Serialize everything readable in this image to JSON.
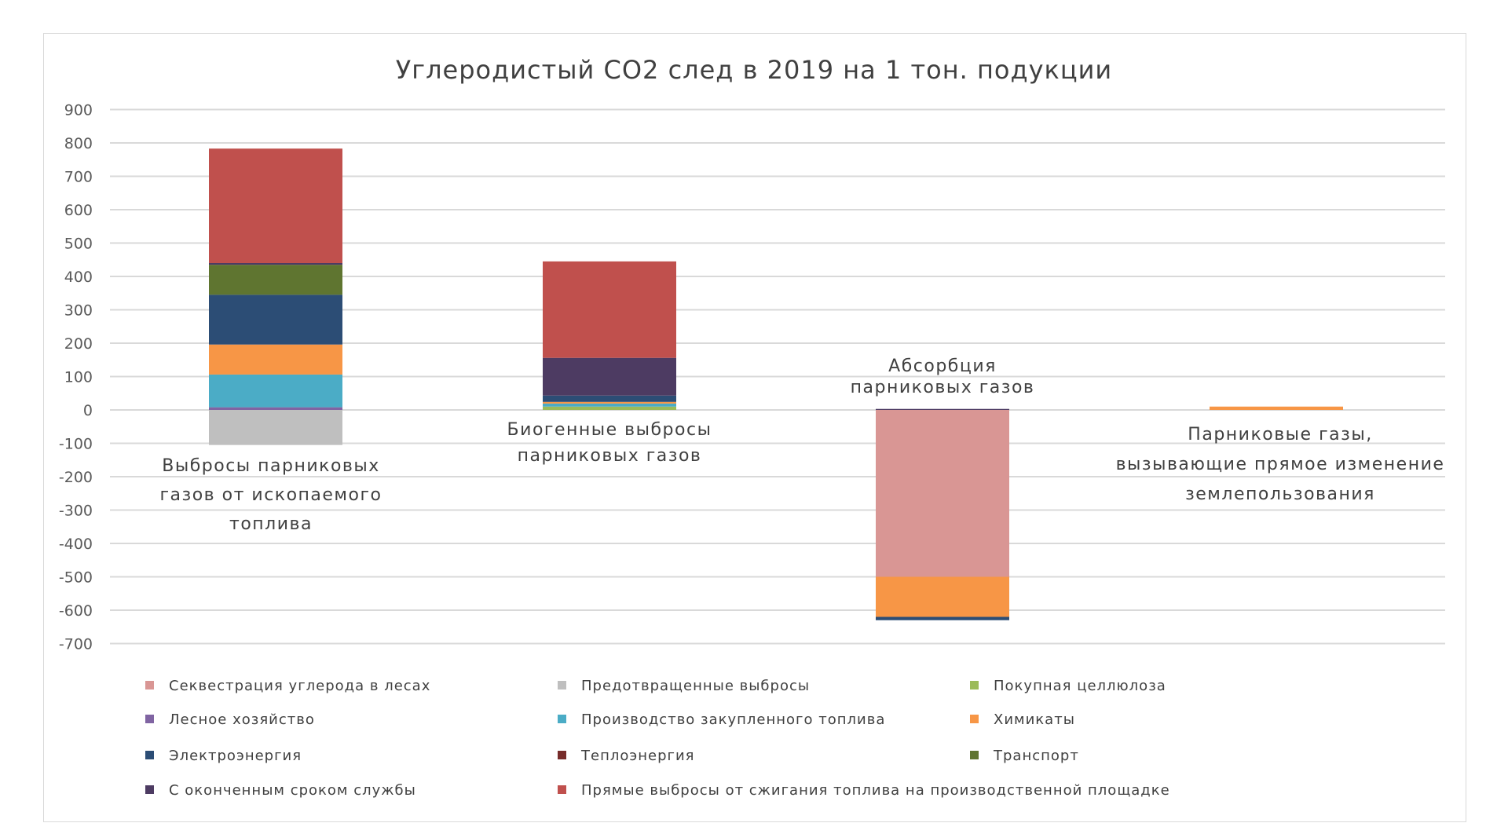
{
  "chart_data": {
    "type": "bar",
    "stacked": true,
    "title": "Углеродистый CO2 след в 2019 на 1 тон. подукции",
    "xlabel": "",
    "ylabel": "",
    "ylim": [
      -700,
      900
    ],
    "yticks": [
      900,
      800,
      700,
      600,
      500,
      400,
      300,
      200,
      100,
      0,
      -100,
      -200,
      -300,
      -400,
      -500,
      -600,
      -700
    ],
    "grid": true,
    "legend_position": "bottom",
    "categories": [
      [
        "Выбросы парниковых",
        "газов от ископаемого",
        "топлива"
      ],
      [
        "Биогенные выбросы",
        "парниковых газов"
      ],
      [
        "Абсорбция",
        "парниковых газов"
      ],
      [
        "Парниковые газы,",
        "вызывающие прямое изменение",
        "землепользования"
      ]
    ],
    "series": [
      {
        "name": "Секвестрация углерода в лесах",
        "color": "#D99694",
        "values": [
          0,
          0,
          -500,
          0
        ]
      },
      {
        "name": "Предотвращенные выбросы",
        "color": "#BFBFBF",
        "values": [
          -105,
          0,
          0,
          0
        ]
      },
      {
        "name": "Покупная целлюлоза",
        "color": "#9BBB59",
        "values": [
          0,
          10,
          0,
          0
        ]
      },
      {
        "name": "Лесное хозяйство",
        "color": "#8064A2",
        "values": [
          8,
          0,
          0,
          0
        ]
      },
      {
        "name": "Производство закупленного топлива",
        "color": "#4BACC6",
        "values": [
          98,
          9,
          0,
          0
        ]
      },
      {
        "name": "Химикаты",
        "color": "#F79646",
        "values": [
          90,
          5,
          -120,
          10
        ]
      },
      {
        "name": "Электроэнергия",
        "color": "#2C4D75",
        "values": [
          149,
          19,
          -10,
          0
        ]
      },
      {
        "name": "Теплоэнергия",
        "color": "#772C2A",
        "values": [
          0,
          0,
          0,
          0
        ]
      },
      {
        "name": "Транспорт",
        "color": "#5F7530",
        "values": [
          90,
          0,
          0,
          0
        ]
      },
      {
        "name": "С оконченным сроком службы",
        "color": "#4D3B62",
        "values": [
          5,
          113,
          3,
          0
        ]
      },
      {
        "name": "Прямые выбросы от сжигания топлива на производственной площадке",
        "color": "#C0504D",
        "values": [
          343,
          289,
          0,
          0
        ]
      }
    ]
  }
}
